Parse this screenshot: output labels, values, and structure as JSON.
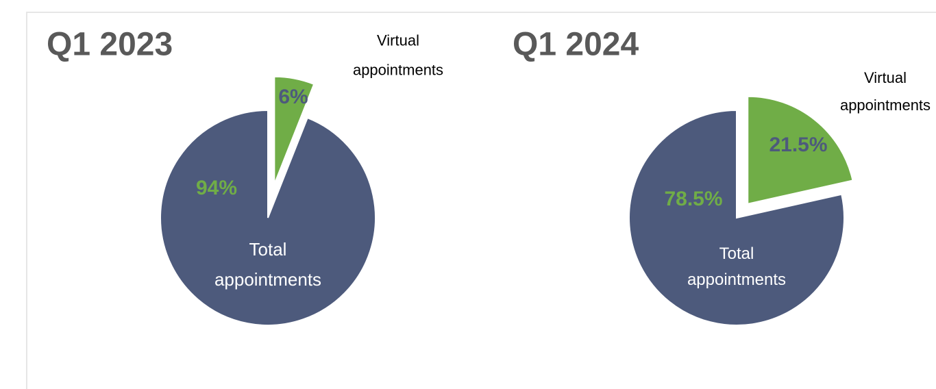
{
  "chart_data": [
    {
      "type": "pie",
      "title": "Q1 2023",
      "categories": [
        "Total appointments",
        "Virtual appointments"
      ],
      "values": [
        94,
        6
      ],
      "value_labels": [
        "94%",
        "6%"
      ],
      "colors": [
        "#4d5a7c",
        "#70ad47"
      ],
      "label_colors": [
        "#70ad47",
        "#4d5a7c"
      ]
    },
    {
      "type": "pie",
      "title": "Q1 2024",
      "categories": [
        "Total appointments",
        "Virtual appointments"
      ],
      "values": [
        78.5,
        21.5
      ],
      "value_labels": [
        "78.5%",
        "21.5%"
      ],
      "colors": [
        "#4d5a7c",
        "#70ad47"
      ],
      "label_colors": [
        "#70ad47",
        "#4d5a7c"
      ]
    }
  ]
}
